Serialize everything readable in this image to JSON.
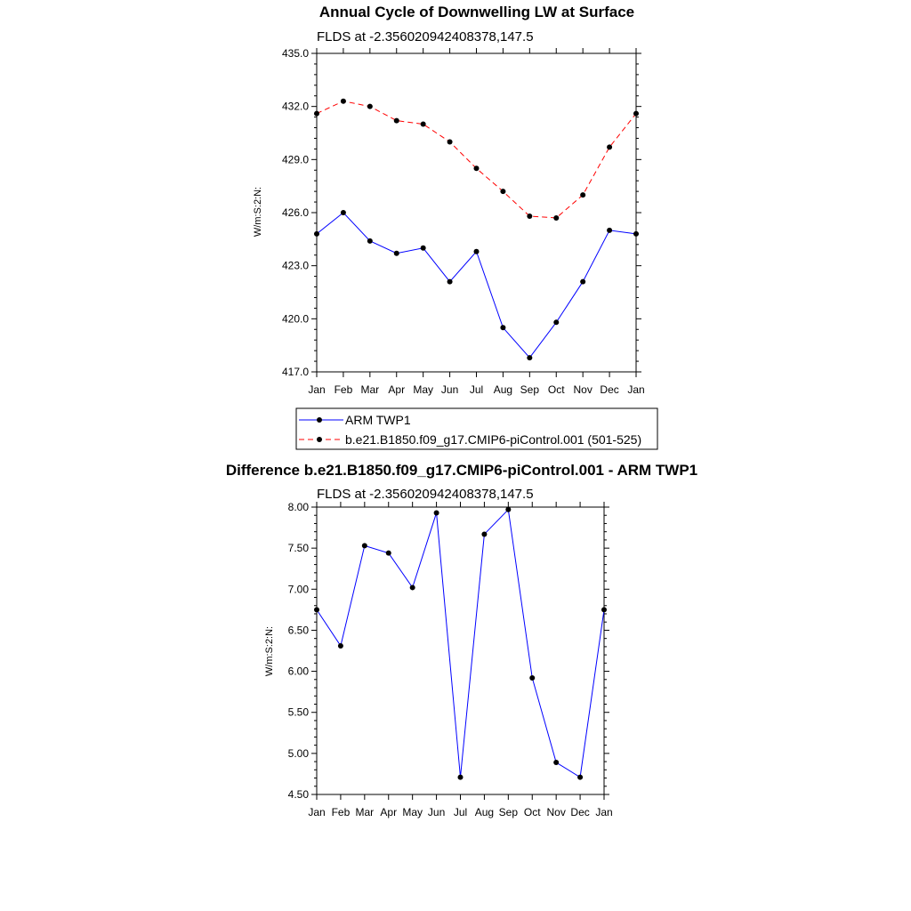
{
  "chart_data": [
    {
      "type": "line",
      "title": "Annual Cycle of Downwelling LW at Surface",
      "subtitle": "FLDS at -2.356020942408378,147.5",
      "xlabel": "",
      "ylabel": "W/m:S:2:N:",
      "categories": [
        "Jan",
        "Feb",
        "Mar",
        "Apr",
        "May",
        "Jun",
        "Jul",
        "Aug",
        "Sep",
        "Oct",
        "Nov",
        "Dec",
        "Jan"
      ],
      "ylim": [
        417.0,
        435.0
      ],
      "yticks": [
        "417.0",
        "420.0",
        "423.0",
        "426.0",
        "429.0",
        "432.0",
        "435.0"
      ],
      "ytick_values": [
        417,
        420,
        423,
        426,
        429,
        432,
        435
      ],
      "legend_position": "below",
      "series": [
        {
          "name": "ARM TWP1",
          "color": "#0000ff",
          "dash": "solid",
          "values": [
            424.8,
            426.0,
            424.4,
            423.7,
            424.0,
            422.1,
            423.8,
            419.5,
            417.8,
            419.8,
            422.1,
            425.0,
            424.8
          ]
        },
        {
          "name": "b.e21.B1850.f09_g17.CMIP6-piControl.001 (501-525)",
          "color": "#ff0000",
          "dash": "dashed",
          "values": [
            431.6,
            432.3,
            432.0,
            431.2,
            431.0,
            430.0,
            428.5,
            427.2,
            425.8,
            425.7,
            427.0,
            429.7,
            431.6
          ]
        }
      ]
    },
    {
      "type": "line",
      "title": "Difference b.e21.B1850.f09_g17.CMIP6-piControl.001 - ARM TWP1",
      "subtitle": "FLDS at -2.356020942408378,147.5",
      "xlabel": "",
      "ylabel": "W/m:S:2:N:",
      "categories": [
        "Jan",
        "Feb",
        "Mar",
        "Apr",
        "May",
        "Jun",
        "Jul",
        "Aug",
        "Sep",
        "Oct",
        "Nov",
        "Dec",
        "Jan"
      ],
      "ylim": [
        4.5,
        8.0
      ],
      "yticks": [
        "4.50",
        "5.00",
        "5.50",
        "6.00",
        "6.50",
        "7.00",
        "7.50",
        "8.00"
      ],
      "ytick_values": [
        4.5,
        5.0,
        5.5,
        6.0,
        6.5,
        7.0,
        7.5,
        8.0
      ],
      "series": [
        {
          "color": "#0000ff",
          "dash": "solid",
          "values": [
            6.75,
            6.31,
            7.53,
            7.44,
            7.02,
            7.93,
            4.71,
            7.67,
            7.97,
            5.92,
            4.89,
            4.71,
            6.75
          ]
        }
      ]
    }
  ]
}
